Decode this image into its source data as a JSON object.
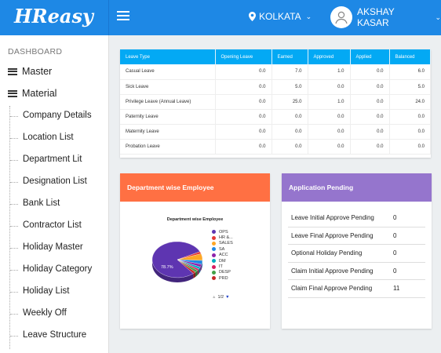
{
  "brand": {
    "logo_text": "HReasy"
  },
  "header": {
    "location": "KOLKATA",
    "user_name": "AKSHAY KASAR"
  },
  "sidebar": {
    "heading": "DASHBOARD",
    "main_items": [
      "Master",
      "Material"
    ],
    "sub_items": [
      "Company Details",
      "Location List",
      "Department Lit",
      "Designation List",
      "Bank List",
      "Contractor List",
      "Holiday Master",
      "Holiday Category",
      "Holiday List",
      "Weekly Off",
      "Leave Structure"
    ]
  },
  "leave_table": {
    "columns": [
      "Leave Type",
      "Opening Leave",
      "Earned",
      "Approved",
      "Applied",
      "Balanced"
    ],
    "rows": [
      [
        "Casual Leave",
        "0.0",
        "7.0",
        "1.0",
        "0.0",
        "6.0"
      ],
      [
        "Sick Leave",
        "0.0",
        "5.0",
        "0.0",
        "0.0",
        "5.0"
      ],
      [
        "Privilege Leave (Annual Leave)",
        "0.0",
        "25.0",
        "1.0",
        "0.0",
        "24.0"
      ],
      [
        "Paternity Leave",
        "0.0",
        "0.0",
        "0.0",
        "0.0",
        "0.0"
      ],
      [
        "Maternity Leave",
        "0.0",
        "0.0",
        "0.0",
        "0.0",
        "0.0"
      ],
      [
        "Probation Leave",
        "0.0",
        "0.0",
        "0.0",
        "0.0",
        "0.0"
      ]
    ]
  },
  "department_card": {
    "title": "Department wise Employee",
    "pager": "1/2"
  },
  "chart_data": {
    "type": "pie",
    "title": "Department wise Employee",
    "categories": [
      "OPS",
      "HR &...",
      "SALES",
      "SA",
      "ACC",
      "DM",
      "IT",
      "DESP",
      "PRD"
    ],
    "values": [
      78.7,
      2.0,
      6.0,
      3.5,
      2.5,
      2.0,
      1.5,
      2.0,
      1.8
    ],
    "colors": [
      "#5e35b1",
      "#e53935",
      "#ffa726",
      "#1e88e5",
      "#8e24aa",
      "#00acc1",
      "#d81b60",
      "#43a047",
      "#c62828"
    ],
    "data_label": "78.7%",
    "legend_position": "right"
  },
  "pending_card": {
    "title": "Application Pending",
    "items": [
      {
        "label": "Leave Initial Approve Pending",
        "count": "0"
      },
      {
        "label": "Leave Final Approve Pending",
        "count": "0"
      },
      {
        "label": "Optional Holiday Pending",
        "count": "0"
      },
      {
        "label": "Claim Initial Approve Pending",
        "count": "0"
      },
      {
        "label": "Claim Final Approve Pending",
        "count": "11"
      }
    ]
  },
  "colors": {
    "topbar": "#1e88e5",
    "table_header": "#03a9f4",
    "dept_header": "#ff7043",
    "pending_header": "#9575cd"
  }
}
